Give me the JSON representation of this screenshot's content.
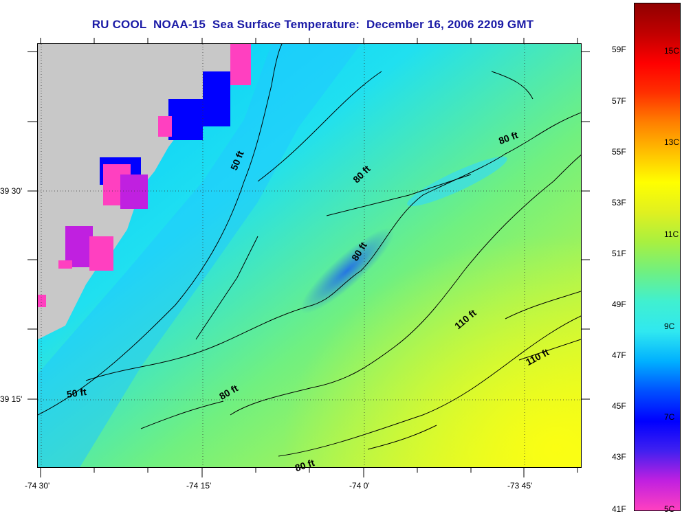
{
  "title": "RU COOL  NOAA-15  Sea Surface Temperature:  December 16, 2006 2209 GMT",
  "colors": {
    "land": "#c8c8c8",
    "title_text": "#1a1aa6",
    "colormap": [
      "#ff40c0",
      "#c020e0",
      "#4020f0",
      "#0000ff",
      "#0050ff",
      "#00b0ff",
      "#30e8f0",
      "#40f0d0",
      "#70f080",
      "#a8f040",
      "#e0f020",
      "#ffff00",
      "#ffc000",
      "#ff8000",
      "#ff3000",
      "#ff0000",
      "#c00000",
      "#900000"
    ]
  },
  "axes": {
    "longitude_labels": [
      "-74 30'",
      "-74 15'",
      "-74 0'",
      "-73 45'"
    ],
    "latitude_labels": [
      "39 30'",
      "39 15'"
    ]
  },
  "colorbar": {
    "fahrenheit_labels": [
      "59F",
      "57F",
      "55F",
      "53F",
      "51F",
      "49F",
      "47F",
      "45F",
      "43F",
      "41F"
    ],
    "celsius_labels": [
      "15C",
      "13C",
      "11C",
      "9C",
      "7C",
      "5C"
    ]
  },
  "contour_labels": [
    "50 ft",
    "80 ft",
    "80 ft",
    "80 ft",
    "110 ft",
    "110 ft",
    "50 ft",
    "80 ft",
    "80 ft"
  ]
}
